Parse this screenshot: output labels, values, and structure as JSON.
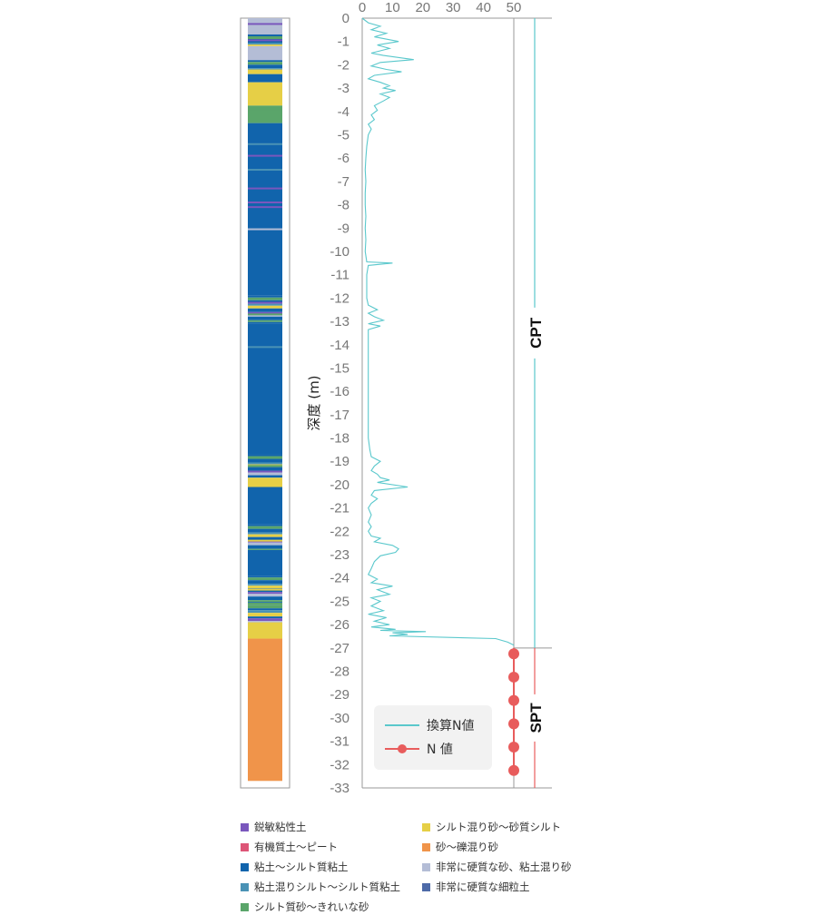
{
  "chart_data": {
    "type": "line",
    "ylabel": "深度 (m)",
    "xlim": [
      0,
      50
    ],
    "ylim": [
      -33,
      0
    ],
    "x_ticks": [
      "0",
      "10",
      "20",
      "30",
      "40",
      "50"
    ],
    "y_ticks": [
      "0",
      "-1",
      "-2",
      "-3",
      "-4",
      "-5",
      "-6",
      "-7",
      "-8",
      "-9",
      "-10",
      "-11",
      "-12",
      "-13",
      "-14",
      "-15",
      "-16",
      "-17",
      "-18",
      "-19",
      "-20",
      "-21",
      "-22",
      "-23",
      "-24",
      "-25",
      "-26",
      "-27",
      "-28",
      "-29",
      "-30",
      "-31",
      "-32",
      "-33"
    ],
    "methods": [
      {
        "label": "CPT",
        "from": 0,
        "to": -27
      },
      {
        "label": "SPT",
        "from": -27,
        "to": -33
      }
    ],
    "series": [
      {
        "name": "換算N値",
        "color": "#5ac8cc",
        "points": [
          [
            0,
            0
          ],
          [
            2,
            -0.2
          ],
          [
            6,
            -0.35
          ],
          [
            3,
            -0.5
          ],
          [
            8,
            -0.65
          ],
          [
            4,
            -0.8
          ],
          [
            12,
            -1.0
          ],
          [
            5,
            -1.15
          ],
          [
            9,
            -1.3
          ],
          [
            3,
            -1.5
          ],
          [
            7,
            -1.6
          ],
          [
            17,
            -1.78
          ],
          [
            6,
            -1.9
          ],
          [
            3,
            -2.05
          ],
          [
            8,
            -2.2
          ],
          [
            13,
            -2.3
          ],
          [
            4,
            -2.45
          ],
          [
            2,
            -2.6
          ],
          [
            6,
            -2.75
          ],
          [
            9,
            -2.9
          ],
          [
            7,
            -3.0
          ],
          [
            11,
            -3.1
          ],
          [
            6,
            -3.25
          ],
          [
            9,
            -3.4
          ],
          [
            7,
            -3.55
          ],
          [
            4,
            -3.75
          ],
          [
            5,
            -3.95
          ],
          [
            3,
            -4.15
          ],
          [
            4,
            -4.35
          ],
          [
            2,
            -4.55
          ],
          [
            3,
            -4.75
          ],
          [
            2,
            -5.0
          ],
          [
            1.5,
            -5.5
          ],
          [
            1.2,
            -6.0
          ],
          [
            1,
            -6.5
          ],
          [
            1.2,
            -7.0
          ],
          [
            1,
            -7.5
          ],
          [
            1,
            -8.0
          ],
          [
            1.2,
            -8.5
          ],
          [
            1,
            -9.0
          ],
          [
            1.2,
            -9.5
          ],
          [
            1,
            -10.0
          ],
          [
            1.5,
            -10.45
          ],
          [
            10,
            -10.5
          ],
          [
            2,
            -10.6
          ],
          [
            1.5,
            -11.0
          ],
          [
            1.5,
            -11.5
          ],
          [
            1.5,
            -12.0
          ],
          [
            2,
            -12.3
          ],
          [
            5,
            -12.5
          ],
          [
            2,
            -12.65
          ],
          [
            4,
            -12.8
          ],
          [
            7,
            -12.95
          ],
          [
            2,
            -13.1
          ],
          [
            6,
            -13.2
          ],
          [
            2,
            -13.35
          ],
          [
            2,
            -14.0
          ],
          [
            2,
            -14.5
          ],
          [
            2,
            -15.0
          ],
          [
            2,
            -15.5
          ],
          [
            2,
            -16.0
          ],
          [
            2,
            -16.5
          ],
          [
            2,
            -17.0
          ],
          [
            2,
            -17.5
          ],
          [
            2,
            -18.0
          ],
          [
            2.5,
            -18.5
          ],
          [
            3,
            -18.8
          ],
          [
            6,
            -19.0
          ],
          [
            4,
            -19.2
          ],
          [
            3,
            -19.4
          ],
          [
            5,
            -19.55
          ],
          [
            6,
            -19.7
          ],
          [
            9,
            -19.8
          ],
          [
            5,
            -19.9
          ],
          [
            15,
            -20.1
          ],
          [
            4,
            -20.25
          ],
          [
            3,
            -20.45
          ],
          [
            5,
            -20.6
          ],
          [
            3,
            -20.8
          ],
          [
            2,
            -21.0
          ],
          [
            3,
            -21.3
          ],
          [
            2,
            -21.6
          ],
          [
            3,
            -21.8
          ],
          [
            2,
            -22.0
          ],
          [
            3,
            -22.2
          ],
          [
            6,
            -22.3
          ],
          [
            4,
            -22.45
          ],
          [
            10,
            -22.6
          ],
          [
            12,
            -22.75
          ],
          [
            11,
            -22.9
          ],
          [
            6,
            -23.05
          ],
          [
            4,
            -23.3
          ],
          [
            3,
            -23.6
          ],
          [
            2,
            -23.85
          ],
          [
            5,
            -24.05
          ],
          [
            3,
            -24.2
          ],
          [
            10,
            -24.35
          ],
          [
            5,
            -24.5
          ],
          [
            9,
            -24.7
          ],
          [
            3,
            -24.85
          ],
          [
            6,
            -25.0
          ],
          [
            3,
            -25.2
          ],
          [
            7,
            -25.4
          ],
          [
            2,
            -25.55
          ],
          [
            8,
            -25.7
          ],
          [
            4,
            -25.85
          ],
          [
            9,
            -26.0
          ],
          [
            3,
            -26.1
          ],
          [
            11,
            -26.2
          ],
          [
            6,
            -26.25
          ],
          [
            21,
            -26.3
          ],
          [
            10,
            -26.35
          ],
          [
            15,
            -26.42
          ],
          [
            9,
            -26.48
          ],
          [
            44,
            -26.6
          ],
          [
            48,
            -26.75
          ],
          [
            50,
            -26.88
          ]
        ]
      },
      {
        "name": "N 値",
        "color": "#e85c5c",
        "points": [
          [
            50,
            -27.25
          ],
          [
            50,
            -28.25
          ],
          [
            50,
            -29.25
          ],
          [
            50,
            -30.25
          ],
          [
            50,
            -31.25
          ],
          [
            50,
            -32.25
          ]
        ]
      }
    ],
    "soil_column": [
      {
        "top": 0,
        "bottom": -0.7,
        "soil": "hard_sand"
      },
      {
        "top": -0.7,
        "bottom": -1.2,
        "soil": "mix"
      },
      {
        "top": -1.2,
        "bottom": -1.8,
        "soil": "hard_sand"
      },
      {
        "top": -1.8,
        "bottom": -2.2,
        "soil": "mix"
      },
      {
        "top": -2.2,
        "bottom": -2.4,
        "soil": "silty_sand"
      },
      {
        "top": -2.4,
        "bottom": -2.75,
        "soil": "clay"
      },
      {
        "top": -2.75,
        "bottom": -3.75,
        "soil": "silty_sand"
      },
      {
        "top": -3.75,
        "bottom": -4.5,
        "soil": "sand_clean"
      },
      {
        "top": -4.5,
        "bottom": -11.9,
        "soil": "clay"
      },
      {
        "top": -11.9,
        "bottom": -13.1,
        "soil": "mix"
      },
      {
        "top": -13.1,
        "bottom": -18.7,
        "soil": "clay"
      },
      {
        "top": -18.7,
        "bottom": -19.7,
        "soil": "mix"
      },
      {
        "top": -19.7,
        "bottom": -20.1,
        "soil": "silty_sand"
      },
      {
        "top": -20.1,
        "bottom": -21.7,
        "soil": "clay"
      },
      {
        "top": -21.7,
        "bottom": -22.8,
        "soil": "mix"
      },
      {
        "top": -22.8,
        "bottom": -23.9,
        "soil": "clay"
      },
      {
        "top": -23.9,
        "bottom": -25.9,
        "soil": "mix"
      },
      {
        "top": -25.9,
        "bottom": -26.6,
        "soil": "silty_sand"
      },
      {
        "top": -26.6,
        "bottom": -32.7,
        "soil": "sand_gravel"
      }
    ],
    "soil_thin_bands": [
      {
        "depth": -0.25,
        "soil": "sensitive"
      },
      {
        "depth": -0.95,
        "soil": "sensitive"
      },
      {
        "depth": -4.0,
        "soil": "sand_clean"
      },
      {
        "depth": -5.4,
        "soil": "mix"
      },
      {
        "depth": -5.9,
        "soil": "sensitive"
      },
      {
        "depth": -6.5,
        "soil": "mix"
      },
      {
        "depth": -7.3,
        "soil": "sensitive"
      },
      {
        "depth": -7.9,
        "soil": "sensitive"
      },
      {
        "depth": -8.1,
        "soil": "sensitive"
      },
      {
        "depth": -9.05,
        "soil": "hard_sand"
      },
      {
        "depth": -12.2,
        "soil": "sensitive"
      },
      {
        "depth": -12.7,
        "soil": "sand_clean"
      },
      {
        "depth": -14.1,
        "soil": "mix"
      },
      {
        "depth": -19.2,
        "soil": "sand_clean"
      },
      {
        "depth": -22.4,
        "soil": "silty_sand"
      },
      {
        "depth": -24.5,
        "soil": "silty_sand"
      },
      {
        "depth": -25.1,
        "soil": "sand_clean"
      }
    ],
    "soil_legend": [
      {
        "key": "sensitive",
        "label": "鋭敏粘性土",
        "color": "#7a57bd"
      },
      {
        "key": "silty_sand",
        "label": "シルト混り砂〜砂質シルト",
        "color": "#e6cf46"
      },
      {
        "key": "organic",
        "label": "有機質土〜ピート",
        "color": "#dd5577"
      },
      {
        "key": "sand_gravel",
        "label": "砂〜礫混り砂",
        "color": "#f0944a"
      },
      {
        "key": "clay",
        "label": "粘土〜シルト質粘土",
        "color": "#1164ac"
      },
      {
        "key": "hard_sand",
        "label": "非常に硬質な砂、粘土混り砂",
        "color": "#b4bdd6"
      },
      {
        "key": "silt_mix",
        "label": "粘土混りシルト〜シルト質粘土",
        "color": "#4a92b5"
      },
      {
        "key": "hard_fine",
        "label": "非常に硬質な細粒土",
        "color": "#4d6aa8"
      },
      {
        "key": "sand_clean",
        "label": "シルト質砂〜きれいな砂",
        "color": "#5aa56a"
      }
    ]
  }
}
